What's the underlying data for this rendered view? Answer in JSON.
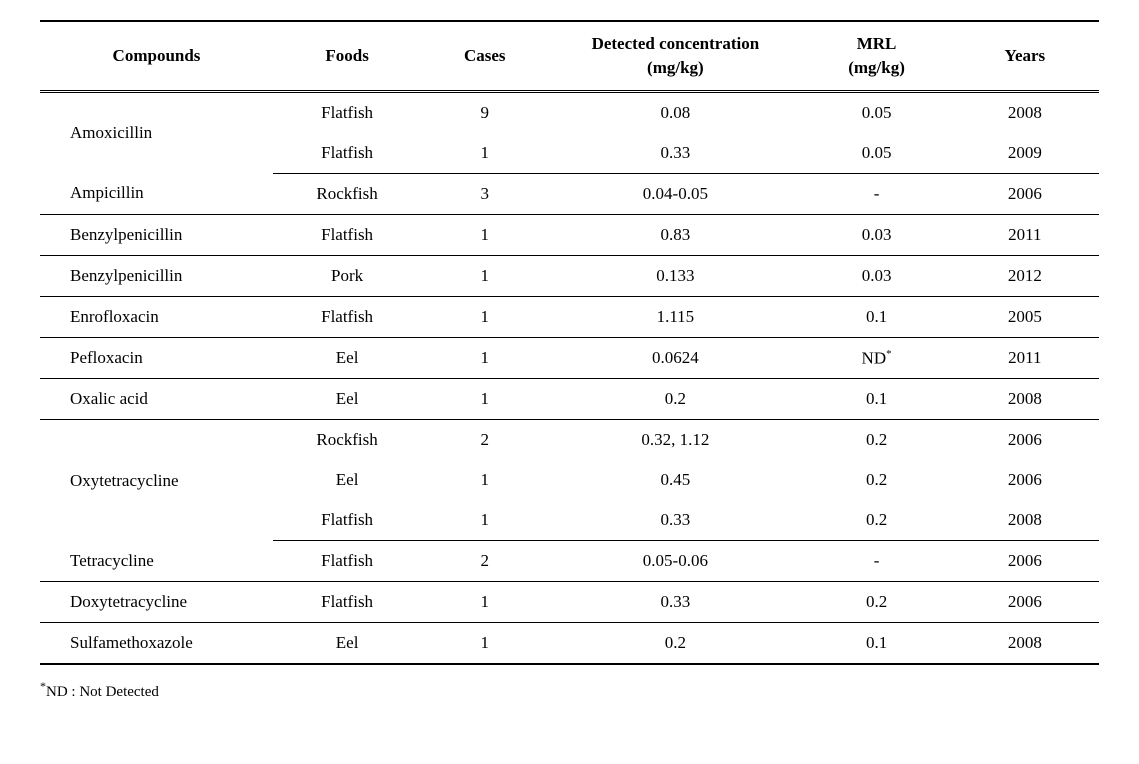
{
  "table": {
    "columns": {
      "compounds": "Compounds",
      "foods": "Foods",
      "cases": "Cases",
      "detected_line1": "Detected concentration",
      "detected_line2": "(mg/kg)",
      "mrl_line1": "MRL",
      "mrl_line2": "(mg/kg)",
      "years": "Years"
    },
    "groups": [
      {
        "compound": "Amoxicillin",
        "rows": [
          {
            "food": "Flatfish",
            "cases": "9",
            "detected": "0.08",
            "mrl": "0.05",
            "year": "2008"
          },
          {
            "food": "Flatfish",
            "cases": "1",
            "detected": "0.33",
            "mrl": "0.05",
            "year": "2009"
          }
        ]
      },
      {
        "compound": "Ampicillin",
        "rows": [
          {
            "food": "Rockfish",
            "cases": "3",
            "detected": "0.04-0.05",
            "mrl": "-",
            "year": "2006"
          }
        ]
      },
      {
        "compound": "Benzylpenicillin",
        "rows": [
          {
            "food": "Flatfish",
            "cases": "1",
            "detected": "0.83",
            "mrl": "0.03",
            "year": "2011"
          }
        ]
      },
      {
        "compound": "Benzylpenicillin",
        "rows": [
          {
            "food": "Pork",
            "cases": "1",
            "detected": "0.133",
            "mrl": "0.03",
            "year": "2012"
          }
        ]
      },
      {
        "compound": "Enrofloxacin",
        "rows": [
          {
            "food": "Flatfish",
            "cases": "1",
            "detected": "1.115",
            "mrl": "0.1",
            "year": "2005"
          }
        ]
      },
      {
        "compound": "Pefloxacin",
        "rows": [
          {
            "food": "Eel",
            "cases": "1",
            "detected": "0.0624",
            "mrl": "ND",
            "mrl_sup": "*",
            "year": "2011"
          }
        ]
      },
      {
        "compound": "Oxalic acid",
        "rows": [
          {
            "food": "Eel",
            "cases": "1",
            "detected": "0.2",
            "mrl": "0.1",
            "year": "2008"
          }
        ]
      },
      {
        "compound": "Oxytetracycline",
        "rows": [
          {
            "food": "Rockfish",
            "cases": "2",
            "detected": "0.32, 1.12",
            "mrl": "0.2",
            "year": "2006"
          },
          {
            "food": "Eel",
            "cases": "1",
            "detected": "0.45",
            "mrl": "0.2",
            "year": "2006"
          },
          {
            "food": "Flatfish",
            "cases": "1",
            "detected": "0.33",
            "mrl": "0.2",
            "year": "2008"
          }
        ]
      },
      {
        "compound": "Tetracycline",
        "rows": [
          {
            "food": "Flatfish",
            "cases": "2",
            "detected": "0.05-0.06",
            "mrl": "-",
            "year": "2006"
          }
        ]
      },
      {
        "compound": "Doxytetracycline",
        "rows": [
          {
            "food": "Flatfish",
            "cases": "1",
            "detected": "0.33",
            "mrl": "0.2",
            "year": "2006"
          }
        ]
      },
      {
        "compound": "Sulfamethoxazole",
        "rows": [
          {
            "food": "Eel",
            "cases": "1",
            "detected": "0.2",
            "mrl": "0.1",
            "year": "2008"
          }
        ]
      }
    ]
  },
  "footnote": {
    "marker": "*",
    "text": "ND : Not Detected"
  },
  "style": {
    "font_family": "Times New Roman",
    "header_fontsize_pt": 17,
    "body_fontsize_pt": 17,
    "footnote_fontsize_pt": 15,
    "text_color": "#000000",
    "background_color": "#ffffff",
    "border_color": "#000000",
    "col_widths_pct": [
      22,
      14,
      12,
      24,
      14,
      14
    ]
  }
}
